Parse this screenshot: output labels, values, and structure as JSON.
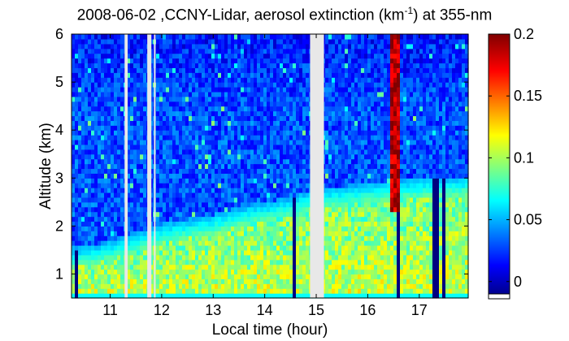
{
  "title_prefix": "2008-06-02 ,CCNY-Lidar, aerosol extinction (km",
  "title_superscript": "-1",
  "title_suffix": ") at 355-nm",
  "chart_data": {
    "type": "heatmap",
    "xlabel": "Local time (hour)",
    "ylabel": "Altitude (km)",
    "xlim": [
      10.25,
      17.95
    ],
    "ylim": [
      0.5,
      6
    ],
    "xticks": [
      11,
      12,
      13,
      14,
      15,
      16,
      17
    ],
    "yticks": [
      1,
      2,
      3,
      4,
      5,
      6
    ],
    "colorbar": {
      "range": [
        -0.01,
        0.2
      ],
      "ticks": [
        {
          "value": 0,
          "label": "0"
        },
        {
          "value": 0.05,
          "label": "0.05"
        },
        {
          "value": 0.1,
          "label": "0.1"
        },
        {
          "value": 0.15,
          "label": "0.15"
        },
        {
          "value": 0.2,
          "label": "0.2"
        }
      ],
      "colormap": "jet"
    },
    "no_data_intervals": [
      [
        11.28,
        11.34
      ],
      [
        11.72,
        11.8
      ],
      [
        11.85,
        11.88
      ],
      [
        14.88,
        15.15
      ]
    ],
    "boundary_layer_top_km": [
      [
        10.25,
        1.3
      ],
      [
        10.8,
        1.4
      ],
      [
        11.5,
        1.6
      ],
      [
        12.0,
        1.8
      ],
      [
        12.5,
        1.9
      ],
      [
        13.0,
        2.0
      ],
      [
        13.5,
        2.15
      ],
      [
        14.0,
        2.25
      ],
      [
        14.5,
        2.35
      ],
      [
        14.85,
        2.5
      ],
      [
        15.2,
        2.55
      ],
      [
        15.6,
        2.6
      ],
      [
        16.0,
        2.65
      ],
      [
        16.5,
        2.7
      ],
      [
        17.0,
        2.75
      ],
      [
        17.95,
        2.8
      ]
    ],
    "surface_layer_extinction": 0.12,
    "free_troposphere_extinction": 0.015,
    "cloud_event": {
      "x_range": [
        16.43,
        16.63
      ],
      "altitude_range_km": [
        2.3,
        6.0
      ],
      "extinction": 0.2
    }
  }
}
